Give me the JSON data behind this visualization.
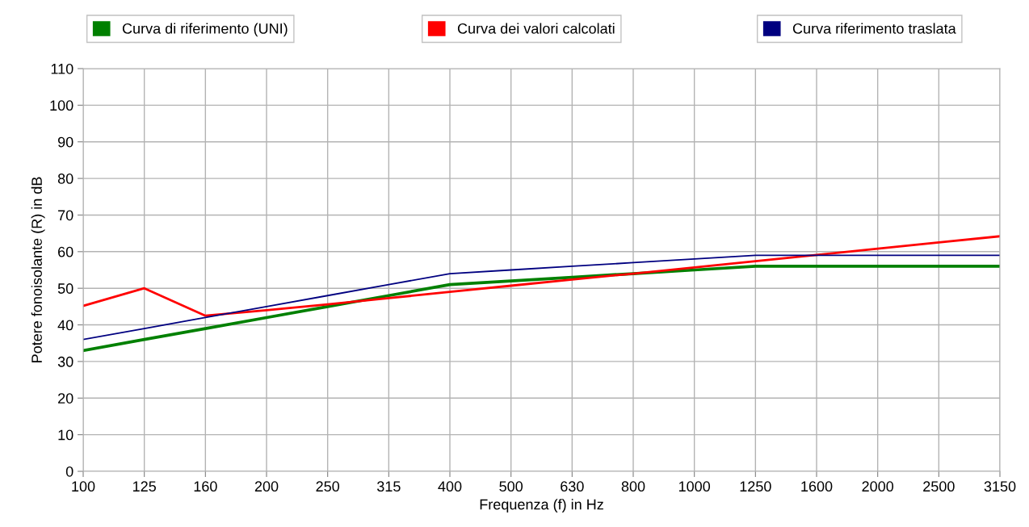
{
  "chart_data": {
    "type": "line",
    "xlabel": "Frequenza (f) in Hz",
    "ylabel": "Potere fonoisolante (R) in dB",
    "categories": [
      "100",
      "125",
      "160",
      "200",
      "250",
      "315",
      "400",
      "500",
      "630",
      "800",
      "1000",
      "1250",
      "1600",
      "2000",
      "2500",
      "3150"
    ],
    "series": [
      {
        "name": "Curva di riferimento (UNI)",
        "color": "#008000",
        "values": [
          33,
          36,
          39,
          42,
          45,
          48,
          51,
          52,
          53,
          54,
          55,
          56,
          56,
          56,
          56,
          56
        ]
      },
      {
        "name": "Curva dei valori calcolati",
        "color": "#ff0000",
        "values": [
          45.2,
          50,
          42.5,
          44,
          45.6,
          47.3,
          49,
          50.7,
          52.4,
          54,
          55.7,
          57.4,
          59.1,
          60.8,
          62.5,
          64.2
        ]
      },
      {
        "name": "Curva riferimento traslata",
        "color": "#000080",
        "values": [
          36,
          39,
          42,
          45,
          48,
          51,
          54,
          55,
          56,
          57,
          58,
          59,
          59,
          59,
          59,
          59
        ]
      }
    ],
    "ylim": [
      0,
      110
    ],
    "yticks": [
      0,
      10,
      20,
      30,
      40,
      50,
      60,
      70,
      80,
      90,
      100,
      110
    ],
    "grid": true,
    "legend": "top",
    "marker": "none",
    "line_style": "solid"
  }
}
